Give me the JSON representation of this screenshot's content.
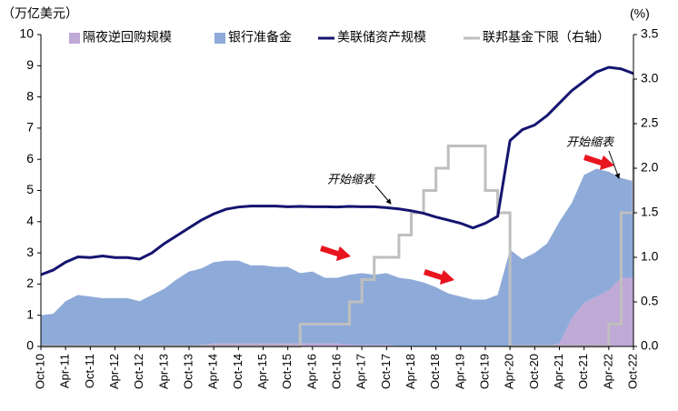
{
  "chart_data": {
    "type": "area",
    "y_unit_label": "（万亿美元）",
    "y2_unit_label": "(%)",
    "annotations": [
      "开始缩表",
      "开始缩表"
    ],
    "categories": [
      "Oct-10",
      null,
      "Apr-11",
      null,
      "Oct-11",
      null,
      "Apr-12",
      null,
      "Oct-12",
      null,
      "Apr-13",
      null,
      "Oct-13",
      null,
      "Apr-14",
      null,
      "Oct-14",
      null,
      "Apr-15",
      null,
      "Oct-15",
      null,
      "Apr-16",
      null,
      "Oct-16",
      null,
      "Apr-17",
      null,
      "Oct-17",
      null,
      "Apr-18",
      null,
      "Oct-18",
      null,
      "Apr-19",
      null,
      "Oct-19",
      null,
      "Apr-20",
      null,
      "Oct-20",
      null,
      "Apr-21",
      null,
      "Oct-21",
      null,
      "Apr-22",
      null,
      "Oct-22"
    ],
    "ylim": [
      0,
      10
    ],
    "yticks": [
      0,
      1,
      2,
      3,
      4,
      5,
      6,
      7,
      8,
      9,
      10
    ],
    "y2lim": [
      0,
      3.5
    ],
    "y2ticks": [
      {
        "value": 0,
        "label": "0.0"
      },
      0.5,
      {
        "value": 1,
        "label": "1.0"
      },
      1.5,
      {
        "value": 2,
        "label": "2.0"
      },
      2.5,
      {
        "value": 3,
        "label": "3.0"
      },
      3.5
    ],
    "stacked": true,
    "grid": false,
    "series": [
      {
        "name": "隔夜逆回购规模",
        "type": "area",
        "color": "#bfa9d6",
        "values": [
          0,
          0,
          0,
          0,
          0,
          0,
          0,
          0,
          0,
          0,
          0,
          0,
          0,
          0.05,
          0.1,
          0.1,
          0.1,
          0.1,
          0.1,
          0.1,
          0.1,
          0.1,
          0.1,
          0.1,
          0.1,
          0.05,
          0.05,
          0.05,
          0.05,
          0,
          0,
          0,
          0,
          0,
          0,
          0,
          0,
          0,
          0,
          0,
          0,
          0,
          0.1,
          0.9,
          1.4,
          1.6,
          1.8,
          2.2,
          2.2
        ]
      },
      {
        "name": "银行准备金",
        "type": "area",
        "color": "#8eaad8",
        "values": [
          1.0,
          1.05,
          1.45,
          1.65,
          1.6,
          1.55,
          1.55,
          1.55,
          1.45,
          1.65,
          1.85,
          2.15,
          2.4,
          2.45,
          2.6,
          2.65,
          2.65,
          2.5,
          2.5,
          2.45,
          2.45,
          2.25,
          2.3,
          2.1,
          2.1,
          2.25,
          2.3,
          2.25,
          2.3,
          2.2,
          2.15,
          2.05,
          1.9,
          1.7,
          1.6,
          1.5,
          1.5,
          1.65,
          3.1,
          2.8,
          3.0,
          3.3,
          3.9,
          3.7,
          4.1,
          4.1,
          3.8,
          3.2,
          3.1
        ]
      },
      {
        "name": "美联储资产规模",
        "type": "line",
        "color": "#141470",
        "values": [
          2.3,
          2.45,
          2.7,
          2.87,
          2.85,
          2.9,
          2.85,
          2.85,
          2.8,
          3.0,
          3.3,
          3.55,
          3.8,
          4.05,
          4.25,
          4.4,
          4.47,
          4.5,
          4.5,
          4.5,
          4.48,
          4.49,
          4.48,
          4.48,
          4.47,
          4.49,
          4.48,
          4.48,
          4.45,
          4.41,
          4.35,
          4.27,
          4.15,
          4.05,
          3.95,
          3.8,
          3.95,
          4.17,
          6.6,
          6.95,
          7.1,
          7.4,
          7.8,
          8.2,
          8.5,
          8.8,
          8.95,
          8.9,
          8.75
        ]
      },
      {
        "name": "联邦基金下限（右轴）",
        "type": "step",
        "axis": "y2",
        "color": "#bfbfbf",
        "values": [
          0,
          0,
          0,
          0,
          0,
          0,
          0,
          0,
          0,
          0,
          0,
          0,
          0,
          0,
          0,
          0,
          0,
          0,
          0,
          0,
          0,
          0.25,
          0.25,
          0.25,
          0.25,
          0.5,
          0.75,
          1.0,
          1.0,
          1.25,
          1.5,
          1.75,
          2.0,
          2.25,
          2.25,
          2.25,
          1.75,
          1.5,
          0,
          0,
          0,
          0,
          0,
          0,
          0,
          0,
          0.25,
          1.5,
          3.0
        ]
      }
    ]
  }
}
